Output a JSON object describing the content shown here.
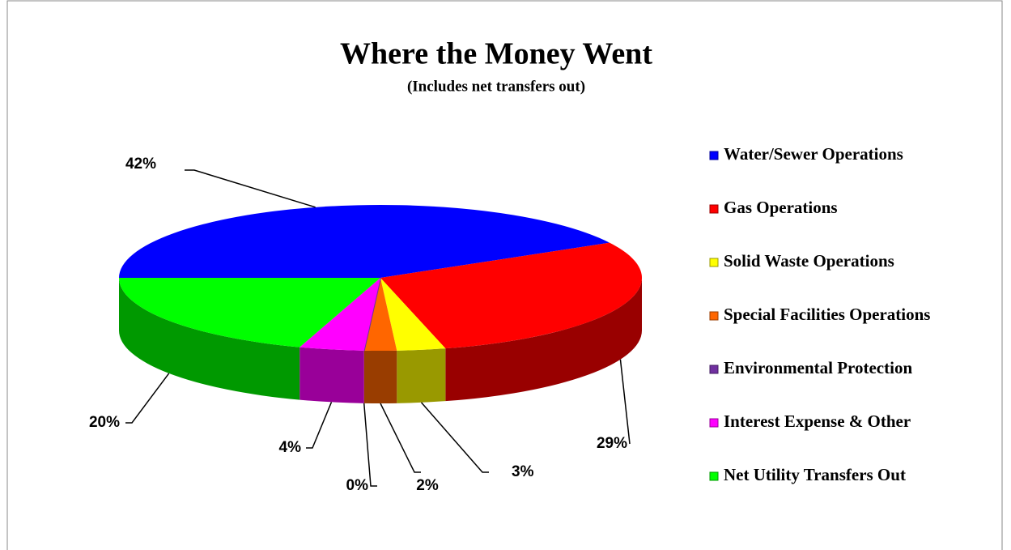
{
  "chart_data": {
    "type": "pie",
    "title": "Where the Money Went",
    "subtitle": "(Includes net transfers out)",
    "categories": [
      "Water/Sewer Operations",
      "Gas Operations",
      "Solid Waste Operations",
      "Special Facilities Operations",
      "Environmental Protection",
      "Interest Expense & Other",
      "Net Utility Transfers Out"
    ],
    "values": [
      42,
      29,
      3,
      2,
      0,
      4,
      20
    ],
    "value_labels": [
      "42%",
      "29%",
      "3%",
      "2%",
      "0%",
      "4%",
      "20%"
    ],
    "colors": [
      "#0000ff",
      "#ff0000",
      "#ffff00",
      "#ff6600",
      "#7030a0",
      "#ff00ff",
      "#00ff00"
    ]
  }
}
